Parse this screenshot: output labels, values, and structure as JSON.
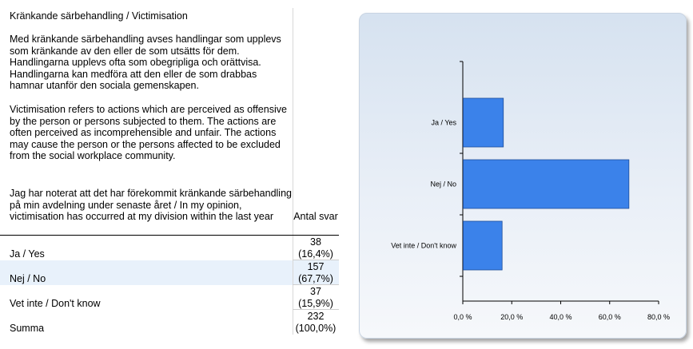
{
  "question": {
    "title": "Kränkande särbehandling / Victimisation",
    "para1": "Med kränkande särbehandling avses handlingar som upplevs som kränkande av den eller de som utsätts för dem. Handlingarna upplevs ofta som obegripliga och orättvisa. Handlingarna kan medföra att den eller de som drabbas hamnar utanför den sociala gemenskapen.",
    "para2": "Victimisation refers to actions which are perceived as offensive by the person or persons subjected to them. The actions are often perceived as incomprehensible and unfair. The actions may cause the person or the persons affected to be excluded from the social workplace community.",
    "para3": "Jag har noterat att det har förekommit kränkande särbehandling på min avdelning under senaste året / In my opinion, victimisation has occurred at my division within the last year"
  },
  "table": {
    "count_header": "Antal svar",
    "rows": [
      {
        "label": "Ja / Yes",
        "count": "38",
        "pct": "(16,4%)"
      },
      {
        "label": "Nej / No",
        "count": "157",
        "pct": "(67,7%)"
      },
      {
        "label": "Vet inte / Don't know",
        "count": "37",
        "pct": "(15,9%)"
      },
      {
        "label": "Summa",
        "count": "232",
        "pct": "(100,0%)"
      }
    ]
  },
  "chart_data": {
    "type": "bar",
    "orientation": "horizontal",
    "categories": [
      "Ja / Yes",
      "Nej / No",
      "Vet inte / Don't know"
    ],
    "values": [
      16.4,
      67.7,
      15.9
    ],
    "xlim": [
      0,
      80
    ],
    "xticks": [
      "0,0 %",
      "20,0 %",
      "40,0 %",
      "60,0 %",
      "80,0 %"
    ],
    "grid": false,
    "bar_color": "#3b82ea",
    "title": "",
    "xlabel": "",
    "ylabel": ""
  }
}
